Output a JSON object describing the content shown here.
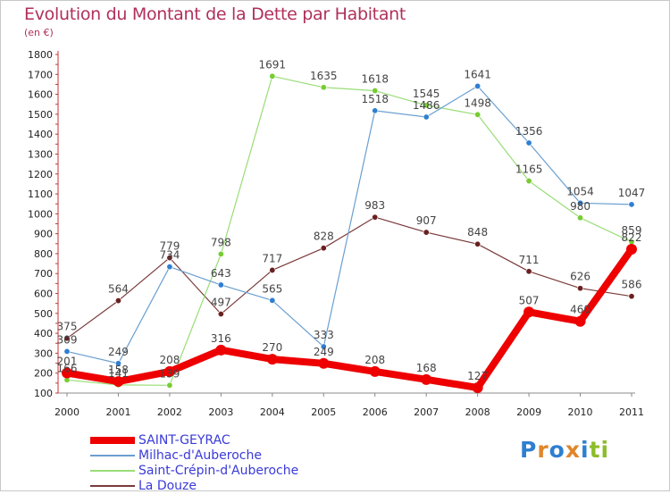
{
  "title": "Evolution du Montant de la Dette par Habitant",
  "subtitle": "(en €)",
  "logo": {
    "text": "Proxiti",
    "letter_colors": [
      "#2f7fd0",
      "#e0862a",
      "#2f7fd0",
      "#e0862a",
      "#2f7fd0",
      "#8cbd2a",
      "#8cbd2a"
    ]
  },
  "chart_data": {
    "type": "line",
    "x": [
      "2000",
      "2001",
      "2002",
      "2003",
      "2004",
      "2005",
      "2006",
      "2007",
      "2008",
      "2009",
      "2010",
      "2011"
    ],
    "y_ticks": [
      "100",
      "200",
      "300",
      "400",
      "500",
      "600",
      "700",
      "800",
      "900",
      "1000",
      "1100",
      "1200",
      "1300",
      "1400",
      "1500",
      "1600",
      "1700",
      "1800"
    ],
    "ylim": [
      100,
      1800
    ],
    "grid": false,
    "legend_position": "bottom-left",
    "series": [
      {
        "name": "SAINT-GEYRAC",
        "color": "#ee0000",
        "width": 8,
        "marker_r": 6,
        "values": [
          201,
          158,
          208,
          316,
          270,
          249,
          208,
          168,
          127,
          507,
          460,
          822
        ],
        "labels": [
          "201",
          "158",
          "208",
          "316",
          "270",
          "249",
          "208",
          "168",
          "127",
          "507",
          "460",
          "822"
        ]
      },
      {
        "name": "Milhac-d'Auberoche",
        "color": "#6a9fd0",
        "marker_color": "#2f7fd0",
        "width": 1.2,
        "marker_r": 3.2,
        "values": [
          309,
          249,
          734,
          643,
          565,
          333,
          1518,
          1486,
          1641,
          1356,
          1054,
          1047
        ],
        "labels": [
          "309",
          "249",
          "734",
          "643",
          "565",
          "333",
          "1518",
          "1486",
          "1641",
          "1356",
          "1054",
          "1047"
        ]
      },
      {
        "name": "Saint-Crépin-d'Auberoche",
        "color": "#99dd77",
        "marker_color": "#77cc33",
        "width": 1.2,
        "marker_r": 3.2,
        "values": [
          166,
          141,
          139,
          798,
          1691,
          1635,
          1618,
          1545,
          1498,
          1165,
          980,
          859
        ],
        "labels": [
          "166",
          "141",
          "139",
          "798",
          "1691",
          "1635",
          "1618",
          "1545",
          "1498",
          "1165",
          "980",
          "859"
        ]
      },
      {
        "name": "La Douze",
        "color": "#7a3a3a",
        "marker_color": "#6a2020",
        "width": 1.2,
        "marker_r": 3.2,
        "values": [
          375,
          564,
          779,
          497,
          717,
          828,
          983,
          907,
          848,
          711,
          626,
          586
        ],
        "labels": [
          "375",
          "564",
          "779",
          "497",
          "717",
          "828",
          "983",
          "907",
          "848",
          "711",
          "626",
          "586"
        ]
      }
    ]
  }
}
